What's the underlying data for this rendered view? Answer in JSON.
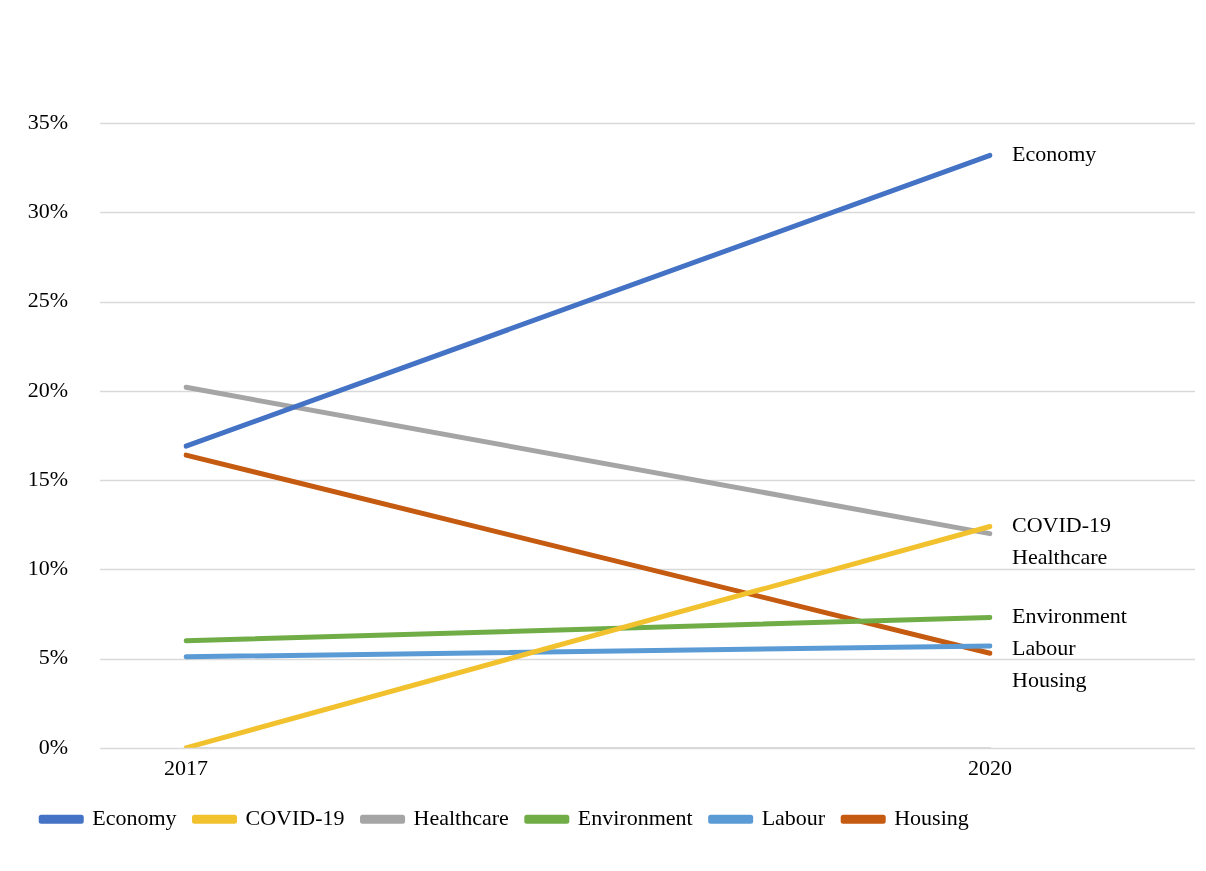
{
  "chart_data": {
    "type": "line",
    "categories": [
      "2017",
      "2020"
    ],
    "series": [
      {
        "name": "Economy",
        "color": "#4472c4",
        "values": [
          16.9,
          33.2
        ]
      },
      {
        "name": "COVID-19",
        "color": "#f2c12e",
        "values": [
          0,
          12.4
        ]
      },
      {
        "name": "Healthcare",
        "color": "#a5a5a5",
        "values": [
          20.2,
          12.0
        ]
      },
      {
        "name": "Environment",
        "color": "#70ad47",
        "values": [
          6.0,
          7.3
        ]
      },
      {
        "name": "Labour",
        "color": "#5b9bd5",
        "values": [
          5.1,
          5.7
        ]
      },
      {
        "name": "Housing",
        "color": "#c55a11",
        "values": [
          16.4,
          5.3
        ]
      }
    ],
    "ylim": [
      0,
      35
    ],
    "yticks": [
      {
        "value": 0,
        "label": "0%"
      },
      {
        "value": 5,
        "label": "5%"
      },
      {
        "value": 10,
        "label": "10%"
      },
      {
        "value": 15,
        "label": "15%"
      },
      {
        "value": 20,
        "label": "20%"
      },
      {
        "value": 25,
        "label": "25%"
      },
      {
        "value": 30,
        "label": "30%"
      },
      {
        "value": 35,
        "label": "35%"
      }
    ],
    "grid": "y",
    "legend": "bottom",
    "marker": "none",
    "line_style": "solid"
  }
}
